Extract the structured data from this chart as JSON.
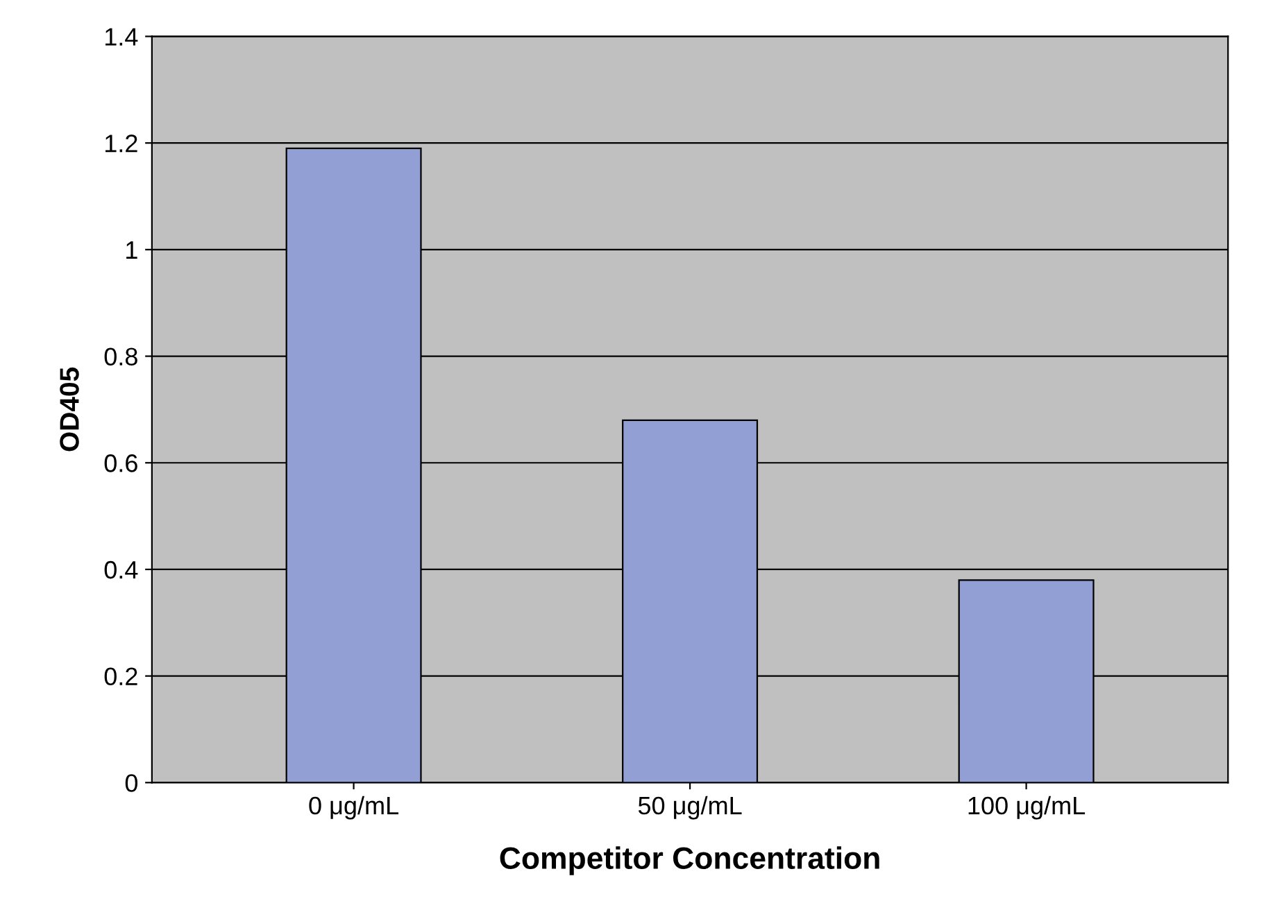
{
  "chart_data": {
    "type": "bar",
    "xlabel": "Competitor Concentration",
    "ylabel": "OD405",
    "categories": [
      "0 μg/mL",
      "50 μg/mL",
      "100 μg/mL"
    ],
    "values": [
      1.19,
      0.68,
      0.38
    ],
    "color": "#919fd5",
    "ylim": [
      0,
      1.4
    ],
    "yticks": [
      0,
      0.2,
      0.4,
      0.6,
      0.8,
      1,
      1.2,
      1.4
    ],
    "grid": "y"
  }
}
